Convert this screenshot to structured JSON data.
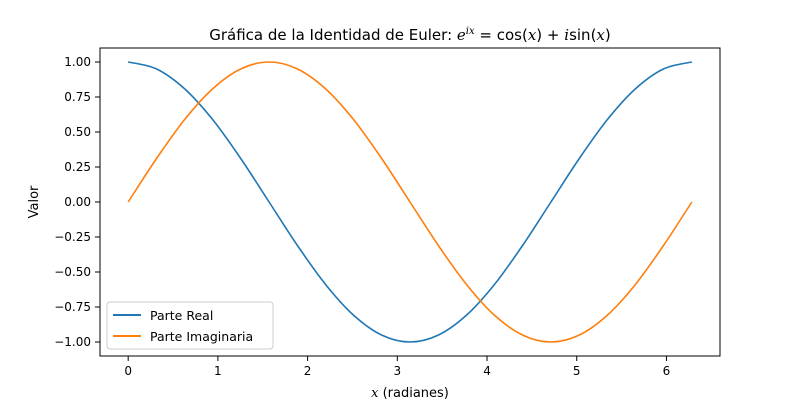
{
  "chart_data": {
    "type": "line",
    "title": "Gráfica de la Identidad de Euler: e^{ix} = cos(x) + i sin(x)",
    "xlabel": "x (radianes)",
    "ylabel": "Valor",
    "xlim": [
      -0.314,
      6.597
    ],
    "ylim": [
      -1.1,
      1.1
    ],
    "x_ticks": [
      0,
      1,
      2,
      3,
      4,
      5,
      6
    ],
    "x_tick_labels": [
      "0",
      "1",
      "2",
      "3",
      "4",
      "5",
      "6"
    ],
    "y_ticks": [
      1.0,
      0.75,
      0.5,
      0.25,
      0.0,
      -0.25,
      -0.5,
      -0.75,
      -1.0
    ],
    "y_tick_labels": [
      "1.00",
      "0.75",
      "0.50",
      "0.25",
      "0.00",
      "−0.25",
      "−0.50",
      "−0.75",
      "−1.00"
    ],
    "grid": false,
    "legend_position": "lower-left",
    "x": [
      0,
      0.3142,
      0.6283,
      0.9425,
      1.2566,
      1.5708,
      1.885,
      2.1991,
      2.5133,
      2.8274,
      3.1416,
      3.4558,
      3.7699,
      4.0841,
      4.3982,
      4.7124,
      5.0265,
      5.3407,
      5.6549,
      5.969,
      6.2832
    ],
    "series": [
      {
        "name": "Parte Real",
        "color": "#1f77b4",
        "values": [
          1.0,
          0.951,
          0.809,
          0.588,
          0.309,
          0.0,
          -0.309,
          -0.588,
          -0.809,
          -0.951,
          -1.0,
          -0.951,
          -0.809,
          -0.588,
          -0.309,
          0.0,
          0.309,
          0.588,
          0.809,
          0.951,
          1.0
        ]
      },
      {
        "name": "Parte Imaginaria",
        "color": "#ff7f0e",
        "values": [
          0.0,
          0.309,
          0.588,
          0.809,
          0.951,
          1.0,
          0.951,
          0.809,
          0.588,
          0.309,
          0.0,
          -0.309,
          -0.588,
          -0.809,
          -0.951,
          -1.0,
          -0.951,
          -0.809,
          -0.588,
          -0.309,
          0.0
        ]
      }
    ]
  },
  "title_parts": {
    "prefix": "Gráfica de la Identidad de Euler: ",
    "base": "e",
    "exponent": "ix",
    "rest_a": " = cos(",
    "x1": "x",
    "rest_b": ") + ",
    "imag": "i",
    "rest_c": "sin(",
    "x2": "x",
    "rest_d": ")"
  },
  "xlabel_parts": {
    "var": "x",
    "unit": " (radianes)"
  }
}
